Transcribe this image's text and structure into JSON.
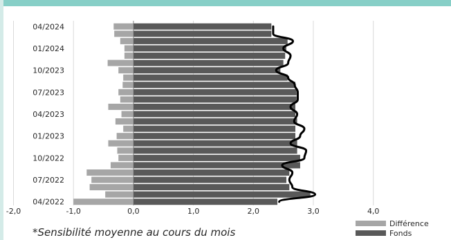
{
  "note": "*Sensibilité moyenne au cours du mois",
  "chart_data": {
    "type": "bar",
    "orientation": "horizontal",
    "xlim": [
      -2.0,
      4.0
    ],
    "x_ticks": [
      "-2,0",
      "-1,0",
      "0,0",
      "1,0",
      "2,0",
      "3,0",
      "4,0"
    ],
    "x_tick_values": [
      -2,
      -1,
      0,
      1,
      2,
      3,
      4
    ],
    "y_tick_labels": [
      "04/2022",
      "07/2022",
      "10/2022",
      "01/2023",
      "04/2023",
      "07/2023",
      "10/2023",
      "01/2024",
      "04/2024"
    ],
    "categories": [
      "04/2022",
      "05/2022",
      "06/2022",
      "07/2022",
      "08/2022",
      "09/2022",
      "10/2022",
      "11/2022",
      "12/2022",
      "01/2023",
      "02/2023",
      "03/2023",
      "04/2023",
      "05/2023",
      "06/2023",
      "07/2023",
      "08/2023",
      "09/2023",
      "10/2023",
      "11/2023",
      "12/2023",
      "01/2024",
      "02/2024",
      "03/2024",
      "04/2024"
    ],
    "series": [
      {
        "name": "Différence",
        "color": "#a6a6a6",
        "values": [
          -1.0,
          -0.47,
          -0.73,
          -0.7,
          -0.78,
          -0.38,
          -0.25,
          -0.27,
          -0.42,
          -0.28,
          -0.17,
          -0.3,
          -0.2,
          -0.42,
          -0.22,
          -0.25,
          -0.18,
          -0.17,
          -0.25,
          -0.43,
          -0.15,
          -0.15,
          -0.22,
          -0.32,
          -0.33
        ]
      },
      {
        "name": "Fonds",
        "color": "#595959",
        "values": [
          2.4,
          2.95,
          2.6,
          2.55,
          2.6,
          2.78,
          2.78,
          2.73,
          2.73,
          2.7,
          2.7,
          2.73,
          2.7,
          2.7,
          2.72,
          2.72,
          2.7,
          2.57,
          2.45,
          2.5,
          2.53,
          2.55,
          2.57,
          2.3,
          2.3
        ]
      }
    ],
    "line_series": [
      {
        "name": "",
        "color": "#000000",
        "values": [
          2.43,
          3.03,
          2.65,
          2.6,
          2.65,
          2.48,
          2.85,
          2.88,
          2.62,
          2.78,
          2.85,
          2.68,
          2.73,
          2.62,
          2.74,
          2.74,
          2.69,
          2.58,
          2.38,
          2.58,
          2.62,
          2.5,
          2.66,
          2.33,
          2.33
        ]
      }
    ],
    "legend": {
      "position": "bottom-right",
      "entries": [
        "Différence",
        "Fonds"
      ]
    },
    "grid": {
      "vertical": true,
      "horizontal": false
    }
  }
}
